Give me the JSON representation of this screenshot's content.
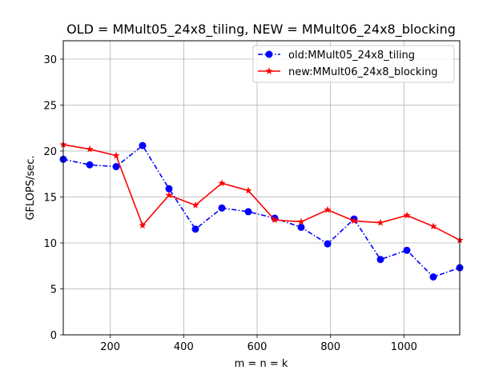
{
  "chart_data": {
    "type": "line",
    "title": "OLD = MMult05_24x8_tiling, NEW = MMult06_24x8_blocking",
    "xlabel": "m = n = k",
    "ylabel": "GFLOPS/sec.",
    "xlim": [
      72,
      1152
    ],
    "ylim": [
      0,
      32
    ],
    "xticks": [
      200,
      400,
      600,
      800,
      1000
    ],
    "yticks": [
      0,
      5,
      10,
      15,
      20,
      25,
      30
    ],
    "grid": true,
    "legend_position": "top-right",
    "x": [
      72,
      144,
      216,
      288,
      360,
      432,
      504,
      576,
      648,
      720,
      792,
      864,
      936,
      1008,
      1080,
      1152
    ],
    "series": [
      {
        "name": "old:MMult05_24x8_tiling",
        "color": "#0000ff",
        "line_style": "dash-dot",
        "marker": "circle",
        "values": [
          19.1,
          18.5,
          18.3,
          20.6,
          15.9,
          11.5,
          13.8,
          13.4,
          12.7,
          11.7,
          9.9,
          12.6,
          8.2,
          9.2,
          6.3,
          7.3
        ]
      },
      {
        "name": "new:MMult06_24x8_blocking",
        "color": "#ff0000",
        "line_style": "solid",
        "marker": "star",
        "values": [
          20.7,
          20.2,
          19.5,
          11.9,
          15.2,
          14.1,
          16.5,
          15.7,
          12.5,
          12.3,
          13.6,
          12.4,
          12.2,
          13.0,
          11.8,
          10.3
        ]
      }
    ]
  }
}
